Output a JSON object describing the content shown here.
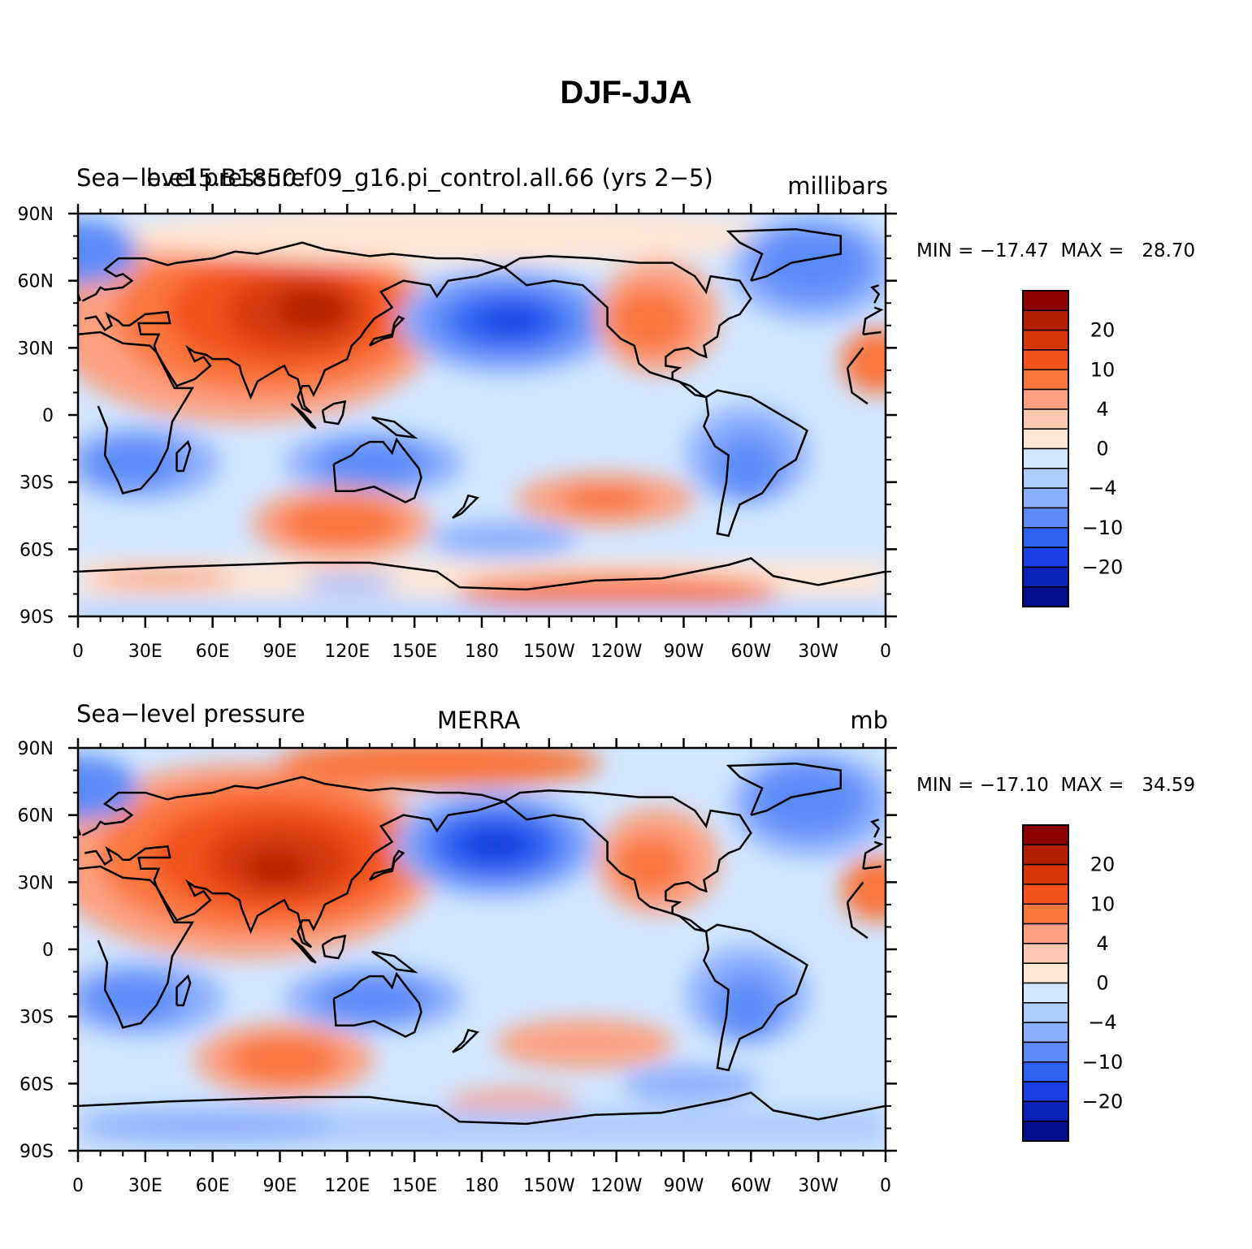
{
  "title": "DJF-JJA",
  "lat_labels": [
    "90N",
    "60N",
    "30N",
    "0",
    "30S",
    "60S",
    "90S"
  ],
  "lon_labels": [
    "0",
    "30E",
    "60E",
    "90E",
    "120E",
    "150E",
    "180",
    "150W",
    "120W",
    "90W",
    "60W",
    "30W",
    "0"
  ],
  "colorbar_labels": [
    "20",
    "10",
    "4",
    "0",
    "−4",
    "−10",
    "−20"
  ],
  "colors": [
    "#8b0000",
    "#b22000",
    "#d43808",
    "#f2521c",
    "#f9773c",
    "#fca080",
    "#fdc8b0",
    "#fde6d6",
    "#d2e6ff",
    "#b0ccff",
    "#8caeff",
    "#5a8cf8",
    "#2c62f0",
    "#1640e0",
    "#0a24b8",
    "#000e8a"
  ],
  "panels": [
    {
      "left_title": "Sea−level pressure",
      "overlay_title": "b.e15.B1850.f09_g16.pi_control.all.66 (yrs 2−5)",
      "center_title": "",
      "units": "millibars",
      "min_label": "MIN = −17.47",
      "max_label": "MAX =   28.70",
      "min": -17.47,
      "max": 28.7
    },
    {
      "left_title": "Sea−level pressure",
      "overlay_title": "",
      "center_title": "MERRA",
      "units": "mb",
      "min_label": "MIN = −17.10",
      "max_label": "MAX =   34.59",
      "min": -17.1,
      "max": 34.59
    }
  ]
}
